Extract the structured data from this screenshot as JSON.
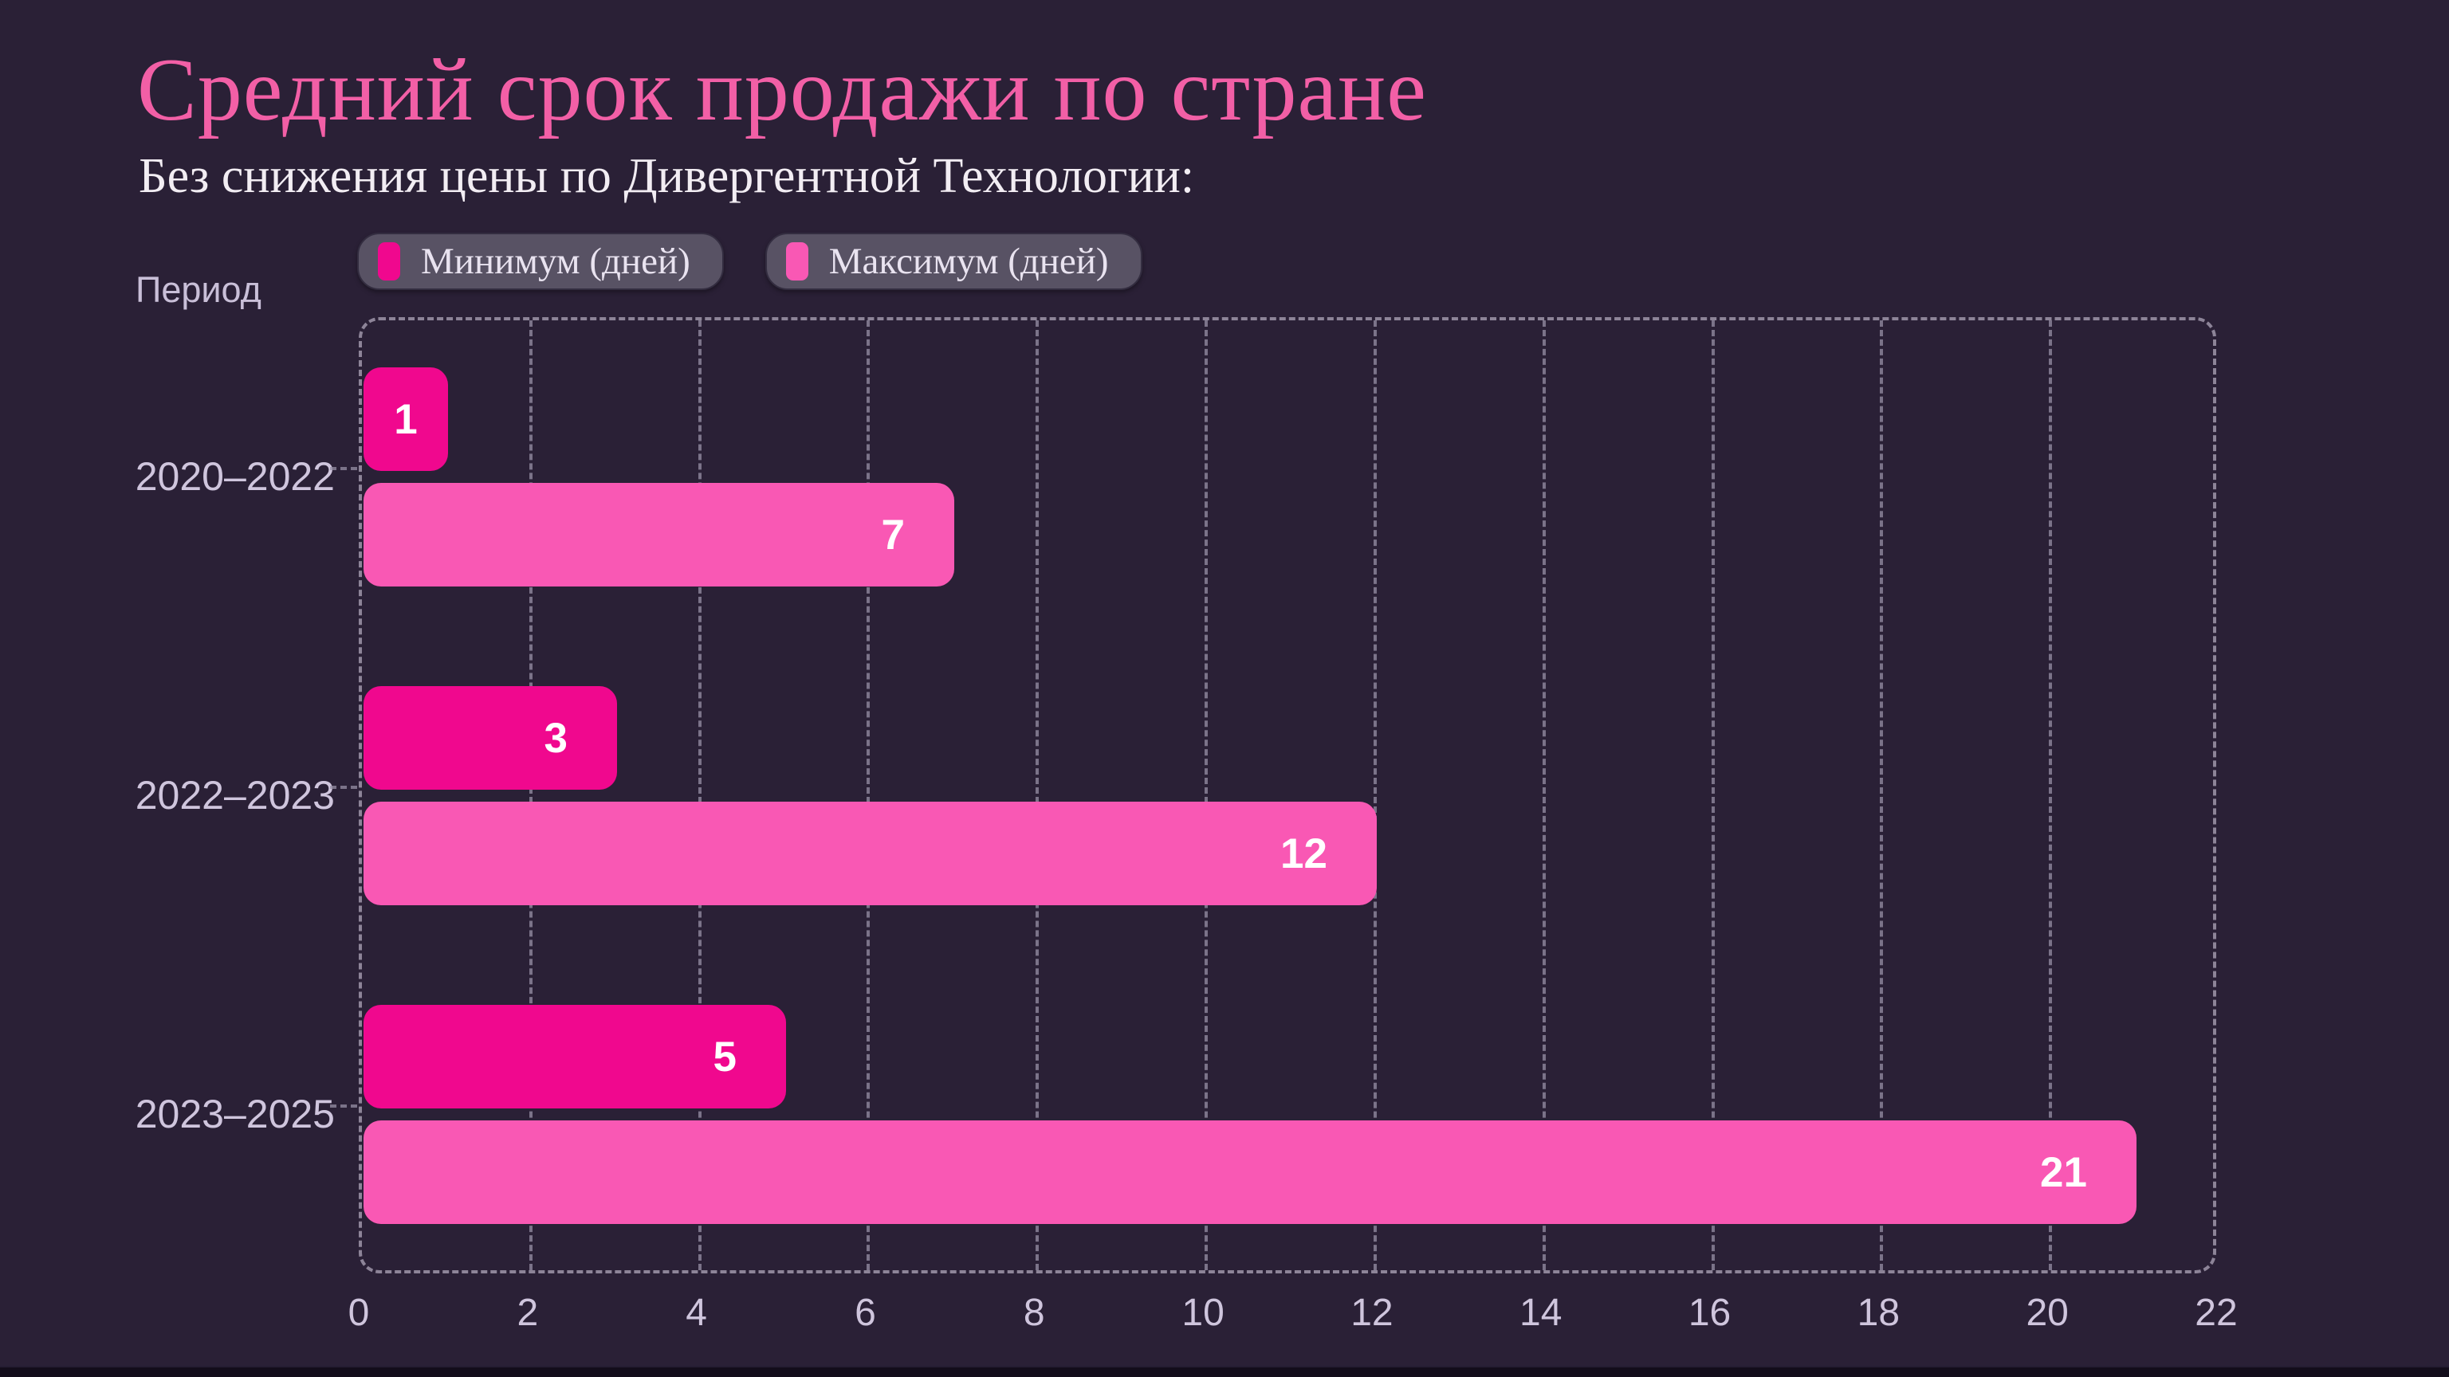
{
  "chart_data": {
    "type": "bar",
    "orientation": "horizontal",
    "title": "Средний срок продажи по стране",
    "subtitle": "Без снижения цены по Дивергентной Технологии:",
    "ylabel": "Период",
    "xlabel": "",
    "categories": [
      "2020–2022",
      "2022–2023",
      "2023–2025"
    ],
    "series": [
      {
        "name": "Минимум (дней)",
        "color": "#f0088e",
        "values": [
          1,
          3,
          5
        ]
      },
      {
        "name": "Максимум (дней)",
        "color": "#f958b4",
        "values": [
          7,
          12,
          21
        ]
      }
    ],
    "xlim": [
      0,
      22
    ],
    "xticks": [
      0,
      2,
      4,
      6,
      8,
      10,
      12,
      14,
      16,
      18,
      20,
      22
    ],
    "grid": true,
    "grid_style": "dashed",
    "legend_position": "top",
    "value_label_position": "inside-end"
  },
  "colors": {
    "background": "#2a2036",
    "footer_strip": "#130d1b",
    "title": "#f25fa6",
    "subtitle": "#f2edf3",
    "axis_text": "#cfc5dd",
    "grid": "#978fa5",
    "legend_background": "#585264",
    "legend_text": "#e9e3f0",
    "value_label": "#ffffff",
    "series_min": "#f0088e",
    "series_max": "#f958b4"
  }
}
